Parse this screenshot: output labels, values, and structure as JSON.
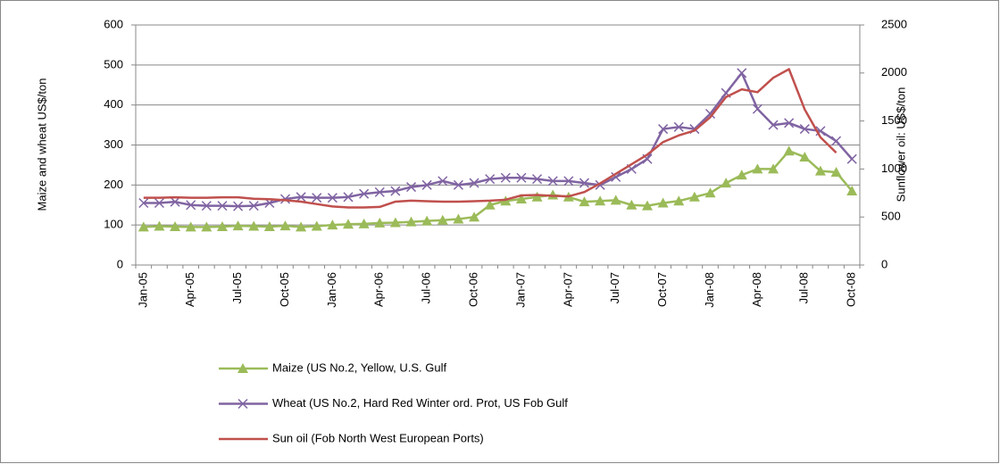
{
  "chart_data": {
    "type": "line",
    "y_label": "Maize and wheat US$/ton",
    "y2_label": "Sunflower oil: US$/ton",
    "categories": [
      "Jan-05",
      null,
      null,
      "Apr-05",
      null,
      null,
      "Jul-05",
      null,
      null,
      "Oct-05",
      null,
      null,
      "Jan-06",
      null,
      null,
      "Apr-06",
      null,
      null,
      "Jul-06",
      null,
      null,
      "Oct-06",
      null,
      null,
      "Jan-07",
      null,
      null,
      "Apr-07",
      null,
      null,
      "Jul-07",
      null,
      null,
      "Oct-07",
      null,
      null,
      "Jan-08",
      null,
      null,
      "Apr-08",
      null,
      null,
      "Jul-08",
      null,
      null,
      "Oct-08"
    ],
    "ylim": [
      0,
      600
    ],
    "yticks": [
      0,
      100,
      200,
      300,
      400,
      500,
      600
    ],
    "y2lim": [
      0,
      2500
    ],
    "y2ticks": [
      0,
      500,
      1000,
      1500,
      2000,
      2500
    ],
    "grid": true,
    "series": [
      {
        "name": "Maize (US No.2, Yellow, U.S. Gulf",
        "color": "#9bbb59",
        "marker": "triangle",
        "values": [
          95,
          97,
          96,
          95,
          95,
          96,
          98,
          97,
          96,
          98,
          95,
          97,
          100,
          102,
          103,
          105,
          106,
          108,
          110,
          112,
          115,
          120,
          150,
          160,
          165,
          170,
          175,
          170,
          158,
          160,
          162,
          150,
          148,
          155,
          160,
          170,
          180,
          205,
          225,
          240,
          240,
          285,
          270,
          235,
          232,
          185
        ]
      },
      {
        "name": "Wheat (US No.2, Hard Red Winter ord. Prot, US Fob Gulf",
        "color": "#8064a2",
        "marker": "x",
        "values": [
          155,
          155,
          158,
          150,
          148,
          148,
          147,
          148,
          155,
          165,
          170,
          168,
          168,
          170,
          178,
          182,
          185,
          195,
          200,
          210,
          200,
          205,
          215,
          218,
          218,
          215,
          210,
          210,
          205,
          200,
          220,
          240,
          265,
          340,
          345,
          340,
          378,
          430,
          480,
          390,
          350,
          355,
          340,
          335,
          310,
          265
        ]
      },
      {
        "name": "Sun oil (Fob North West European Ports)",
        "color": "#c0504d",
        "axis": "y2",
        "values": [
          700,
          700,
          705,
          700,
          700,
          705,
          705,
          690,
          685,
          675,
          660,
          635,
          610,
          600,
          600,
          605,
          660,
          670,
          665,
          660,
          660,
          665,
          670,
          680,
          725,
          730,
          720,
          715,
          760,
          850,
          950,
          1050,
          1150,
          1280,
          1350,
          1400,
          1540,
          1750,
          1830,
          1800,
          1950,
          2040,
          1620,
          1330,
          1170,
          null
        ]
      }
    ]
  }
}
